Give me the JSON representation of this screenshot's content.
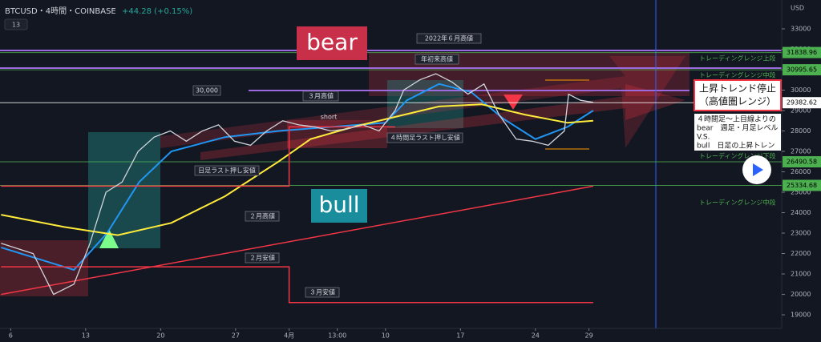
{
  "header": {
    "symbol": "BTCUSD・4時間・COINBASE",
    "change": "+44.28 (+0.15%)",
    "indicator_count": "13",
    "currency": "USD"
  },
  "chart_data": {
    "type": "line",
    "x": [
      -0.9,
      2.1,
      4,
      5.9,
      7.4,
      8.9,
      10.4,
      11.9,
      13.4,
      14.9,
      16.4,
      17.9,
      19.4,
      20.9,
      22.4,
      23.9,
      25.4,
      26.9,
      28.4,
      29.9,
      31.4,
      32.9,
      34.4,
      35.9,
      36.7,
      38.2,
      39.7,
      41.2,
      42.7,
      44.2,
      45.6,
      47.2,
      48.7,
      50.2,
      51.7,
      52.1,
      53.2,
      54.4
    ],
    "values": [
      22500,
      22000,
      20000,
      20500,
      22500,
      25000,
      25500,
      27000,
      27700,
      28000,
      27500,
      28000,
      28300,
      27500,
      27300,
      28000,
      28500,
      28300,
      28200,
      28000,
      28100,
      28300,
      28000,
      29000,
      30000,
      30500,
      30800,
      30400,
      29800,
      30300,
      28800,
      27600,
      27500,
      27300,
      28000,
      29800,
      29500,
      29400
    ],
    "color": "#d1d4dc",
    "overlays": [
      {
        "color": "#2196f3",
        "x": [
          -0.9,
          5.9,
          9,
          12,
          15,
          20,
          25,
          30,
          35,
          37,
          40,
          43,
          46,
          49,
          52,
          54.4
        ],
        "values": [
          22300,
          21200,
          23000,
          25500,
          27000,
          27700,
          28000,
          28200,
          28400,
          29500,
          30300,
          29900,
          28600,
          27600,
          28200,
          29000
        ]
      },
      {
        "color": "#ffeb3b",
        "x": [
          -0.9,
          5,
          10,
          15,
          20,
          25,
          28,
          32,
          36,
          40,
          44,
          48,
          52,
          54.4
        ],
        "values": [
          23900,
          23300,
          22900,
          23500,
          24800,
          26500,
          27600,
          28200,
          28700,
          29200,
          29300,
          28800,
          28400,
          28500
        ]
      },
      {
        "color": "#f23645",
        "x": [
          -0.9,
          54.4
        ],
        "values": [
          20000,
          25300
        ]
      },
      {
        "color": "#f23645",
        "x": [
          -0.9,
          26,
          26,
          54.4
        ],
        "values": [
          21350,
          21350,
          19600,
          19600
        ]
      },
      {
        "color": "#f23645",
        "x": [
          -0.9,
          26,
          26,
          35.9
        ],
        "values": [
          25300,
          25300,
          28200,
          28200
        ]
      }
    ],
    "levels": [
      {
        "value": 31838.96,
        "label": "31838.96",
        "color": "#4caf50"
      },
      {
        "value": 30995.65,
        "label": "30995.65",
        "color": "#4caf50"
      },
      {
        "value": 29382.62,
        "label": "29382.62",
        "color": "#ffffff"
      },
      {
        "value": 26490.58,
        "label": "26490.58",
        "color": "#4caf50"
      },
      {
        "value": 25334.68,
        "label": "25334.68",
        "color": "#4caf50"
      }
    ],
    "xlim": [
      -1,
      72
    ],
    "xticks": [
      {
        "value": 0,
        "label": "6"
      },
      {
        "value": 7,
        "label": "13"
      },
      {
        "value": 14,
        "label": "20"
      },
      {
        "value": 21,
        "label": "27"
      },
      {
        "value": 26,
        "label": "4月"
      },
      {
        "value": 30.5,
        "label": "13:00"
      },
      {
        "value": 35,
        "label": "10"
      },
      {
        "value": 42,
        "label": "17"
      },
      {
        "value": 49,
        "label": "24"
      },
      {
        "value": 54,
        "label": "29"
      }
    ],
    "ylim": [
      17670,
      34410
    ],
    "yticks": [
      19000,
      20000,
      21000,
      22000,
      23000,
      24000,
      25000,
      26000,
      27000,
      28000,
      29000,
      30000,
      31000,
      32000,
      33000
    ]
  },
  "annotations": {
    "bear": "bear",
    "bull": "bull",
    "june_high": "2022年６月高値",
    "ytd_high": "年初来高値",
    "round": "30,000",
    "march_high": "３月高値",
    "short": "short",
    "h4_low": "４時間足ラスト押し安値",
    "daily_low": "日足ラスト押し安値",
    "feb_high": "２月高値",
    "feb_low": "２月安値",
    "march_low": "３月安値",
    "note1": [
      "上昇トレンド停止",
      "（高値圏レンジ）"
    ],
    "note2": [
      "４時間足〜上目線よりの",
      "bear　週足・月足レベル",
      "V.S.",
      "bull　日足の上昇トレン"
    ],
    "ranges": [
      "トレーディングレンジ上段",
      "トレーディングレンジ中段",
      "トレーディングレンジ下段",
      "トレーディングレンジ中段"
    ]
  }
}
